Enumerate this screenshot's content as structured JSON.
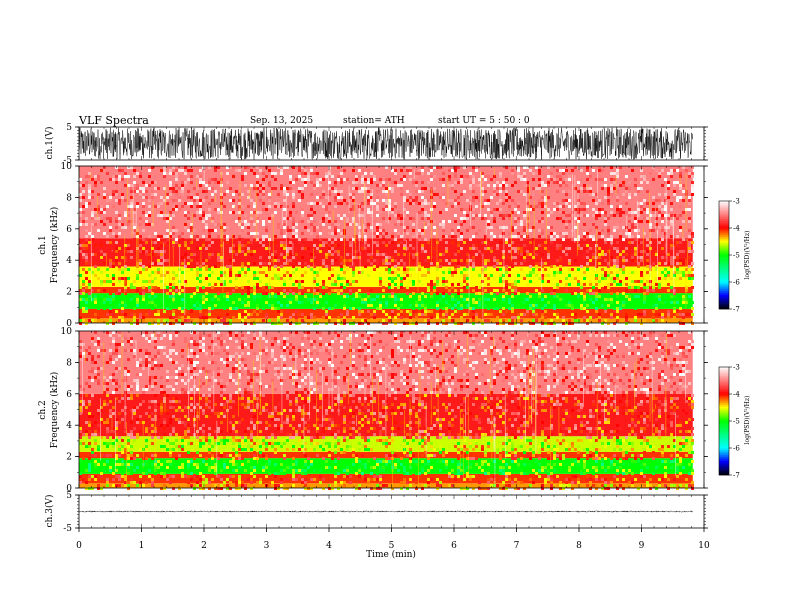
{
  "header": {
    "title": "VLF  Spectra",
    "date": "Sep. 13, 2025",
    "station": "station= ATH",
    "start": "start  UT  =    5  : 50 : 0"
  },
  "chart_data": [
    {
      "type": "line",
      "panel": "ch1-waveform",
      "ylabel": "ch.1(V)",
      "ylim": [
        -5,
        5
      ],
      "yticks": [
        5,
        -5
      ],
      "x_end": 9.82,
      "amplitude_range": [
        -4.8,
        4.8
      ],
      "grid": false
    },
    {
      "type": "heatmap",
      "panel": "ch1-spectrogram",
      "ylabel_line1": "ch.1",
      "ylabel_line2": "Frequency  (kHz)",
      "ylim": [
        0,
        10
      ],
      "yticks": [
        0,
        2,
        4,
        6,
        8,
        10
      ],
      "xlim": [
        0,
        10
      ],
      "x_end": 9.82,
      "bands_khz": [
        {
          "from": 0.0,
          "to": 0.3,
          "level": -4.3
        },
        {
          "from": 0.3,
          "to": 0.9,
          "level": -4.1
        },
        {
          "from": 0.9,
          "to": 1.9,
          "level": -5.0
        },
        {
          "from": 1.9,
          "to": 2.3,
          "level": -4.1
        },
        {
          "from": 2.3,
          "to": 3.6,
          "level": -4.5
        },
        {
          "from": 3.6,
          "to": 5.4,
          "level": -3.9
        },
        {
          "from": 5.4,
          "to": 10.0,
          "level": -3.5
        }
      ],
      "colorbar": {
        "label": "log(PSD)(V²/Hz)",
        "ticks": [
          -3,
          -4,
          -5,
          -6,
          -7
        ]
      }
    },
    {
      "type": "heatmap",
      "panel": "ch2-spectrogram",
      "ylabel_line1": "ch.2",
      "ylabel_line2": "Frequency  (kHz)",
      "ylim": [
        0,
        10
      ],
      "yticks": [
        0,
        2,
        4,
        6,
        8,
        10
      ],
      "xlim": [
        0,
        10
      ],
      "x_end": 9.82,
      "bands_khz": [
        {
          "from": 0.0,
          "to": 0.3,
          "level": -4.3
        },
        {
          "from": 0.3,
          "to": 0.9,
          "level": -4.1
        },
        {
          "from": 0.9,
          "to": 1.9,
          "level": -5.0
        },
        {
          "from": 1.9,
          "to": 2.3,
          "level": -4.1
        },
        {
          "from": 2.3,
          "to": 3.3,
          "level": -4.6
        },
        {
          "from": 3.3,
          "to": 6.0,
          "level": -3.9
        },
        {
          "from": 6.0,
          "to": 10.0,
          "level": -3.5
        }
      ],
      "colorbar": {
        "label": "log(PSD)(V²/Hz)",
        "ticks": [
          -3,
          -4,
          -5,
          -6,
          -7
        ]
      }
    },
    {
      "type": "line",
      "panel": "ch3-waveform",
      "ylabel": "ch.3(V)",
      "ylim": [
        -5,
        5
      ],
      "yticks": [
        5,
        -5
      ],
      "x_end": 9.82,
      "amplitude_range": [
        -0.2,
        0.2
      ],
      "grid": false
    }
  ],
  "xaxis": {
    "label": "Time  (min)",
    "ticks": [
      0,
      1,
      2,
      3,
      4,
      5,
      6,
      7,
      8,
      9,
      10
    ],
    "range": [
      0,
      10
    ]
  },
  "colors": {
    "colormap": [
      "#000000",
      "#0000ff",
      "#00ffff",
      "#00ff00",
      "#ffff00",
      "#ff0000",
      "#ffffff"
    ],
    "colormap_levels": [
      -7,
      -6.5,
      -6,
      -5,
      -4.5,
      -4,
      -3
    ]
  }
}
